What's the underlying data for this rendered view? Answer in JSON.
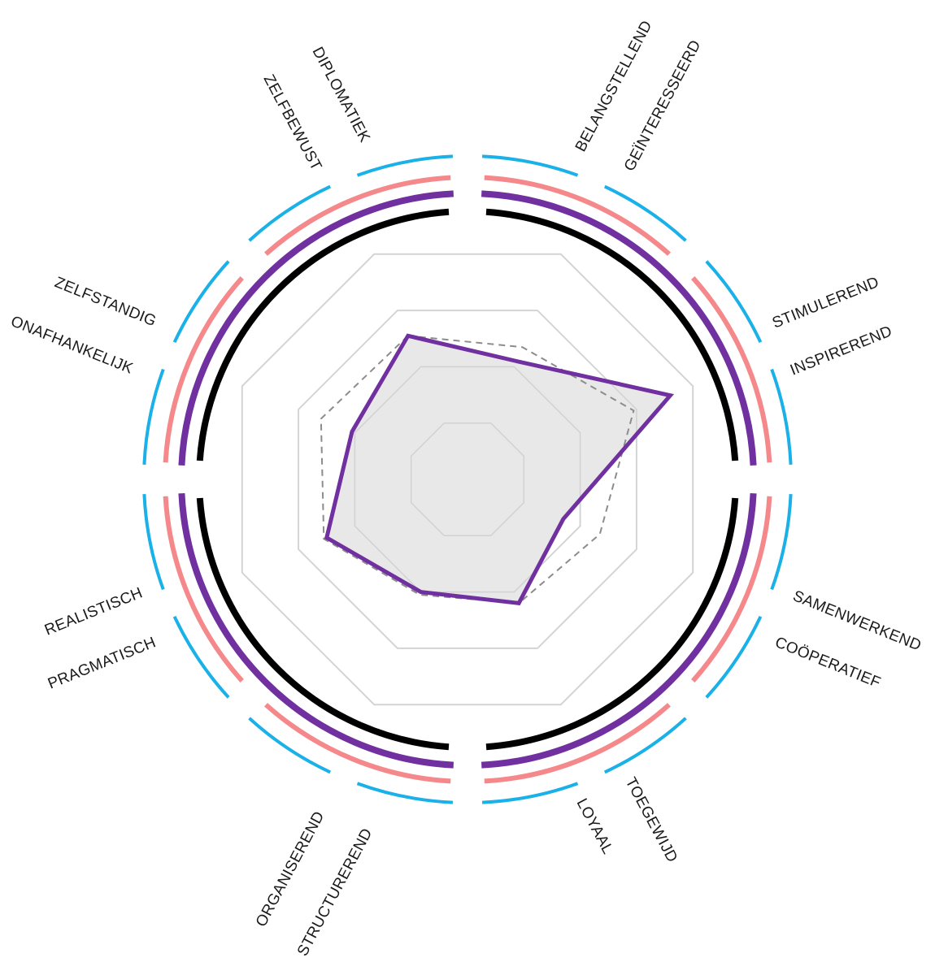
{
  "chart_data": {
    "type": "radar",
    "title": "",
    "axes": [
      {
        "id": "a1",
        "label": "DIPLOMATIEK"
      },
      {
        "id": "a2",
        "label": "BELANGSTELLEND"
      },
      {
        "id": "a3",
        "label": "STIMULEREND"
      },
      {
        "id": "a4",
        "label": "INSPIREREND"
      },
      {
        "id": "a5",
        "label": "SAMENWERKEND"
      },
      {
        "id": "a6",
        "label": "TOEGEWIJD"
      },
      {
        "id": "a7",
        "label": "STRUCTUREREND"
      },
      {
        "id": "a8",
        "label": "REALISTISCH"
      }
    ],
    "outer_labels": [
      {
        "id": "l1",
        "label": "ZELFBEWUST"
      },
      {
        "id": "l2",
        "label": "GEÏNTERESSEERD"
      },
      {
        "id": "l3",
        "label": "INSPIREREND"
      },
      {
        "id": "l4",
        "label": "COÖPERATIEF"
      },
      {
        "id": "l5",
        "label": "LOYAAL"
      },
      {
        "id": "l6",
        "label": "ORGANISEREND"
      },
      {
        "id": "l7",
        "label": "PRAGMATISCH"
      },
      {
        "id": "l8",
        "label": "ONAFHANKELIJK"
      },
      {
        "id": "l9",
        "label": "ZELFSTANDIG"
      }
    ],
    "scale_max": 4,
    "grid_levels": [
      1,
      2,
      3,
      4
    ],
    "series": [
      {
        "values": [
          2.55,
          2.1,
          3.6,
          1.7,
          2.2,
          2.0,
          2.5,
          2.05
        ],
        "color": "#7030a0",
        "fill": "#e6e6e6"
      },
      {
        "values": [
          2.55,
          2.35,
          2.95,
          2.35,
          2.2,
          2.05,
          2.55,
          2.6
        ],
        "color": "#8c8c8c",
        "dashed": true
      }
    ],
    "ring_colors": {
      "black": "#000000",
      "purple": "#7030a0",
      "salmon": "#f4888a",
      "cyan": "#1ab0e8"
    }
  }
}
